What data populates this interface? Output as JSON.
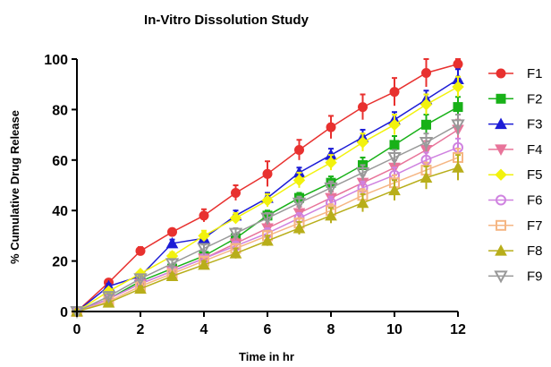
{
  "chart_data": {
    "type": "line",
    "title": "In-Vitro Dissolution Study",
    "xlabel": "Time in hr",
    "ylabel": "% Cumulative Drug Release",
    "xlim": [
      0,
      12
    ],
    "ylim": [
      0,
      100
    ],
    "x_ticks": [
      0,
      2,
      4,
      6,
      8,
      10,
      12
    ],
    "y_ticks": [
      0,
      20,
      40,
      60,
      80,
      100
    ],
    "grid": false,
    "legend_position": "right",
    "x": [
      0,
      1,
      2,
      3,
      4,
      5,
      6,
      7,
      8,
      9,
      10,
      11,
      12
    ],
    "series": [
      {
        "name": "F1",
        "color": "#e8312f",
        "marker": "circle",
        "values": [
          0,
          11.5,
          24,
          31.5,
          38,
          47,
          54.5,
          64,
          73,
          81,
          87,
          94.5,
          98
        ],
        "errors": [
          0,
          1,
          1.5,
          1,
          2.5,
          3,
          5,
          4,
          4.5,
          5,
          5.5,
          5.5,
          2
        ]
      },
      {
        "name": "F2",
        "color": "#18b118",
        "marker": "square",
        "values": [
          0,
          5,
          12,
          17,
          22,
          29,
          38,
          45,
          51,
          58,
          66,
          74,
          81
        ],
        "errors": [
          0,
          1,
          1,
          1,
          1.5,
          1.5,
          2,
          2,
          2.5,
          3,
          3.5,
          4,
          4
        ]
      },
      {
        "name": "F3",
        "color": "#1c1cd6",
        "marker": "triangle-up",
        "values": [
          0,
          10,
          14,
          27,
          29,
          38,
          45,
          55,
          62,
          69,
          76,
          84,
          92
        ],
        "errors": [
          0,
          1,
          1,
          1.5,
          1.5,
          2,
          2,
          2,
          2.5,
          3,
          3,
          3.5,
          4
        ]
      },
      {
        "name": "F4",
        "color": "#e8749a",
        "marker": "triangle-down",
        "values": [
          0,
          5,
          11,
          16,
          21,
          27,
          33,
          39,
          45,
          51,
          57,
          64,
          72
        ],
        "errors": [
          0,
          1,
          1,
          1,
          1.5,
          2,
          2,
          2.5,
          2.5,
          3,
          3,
          3.5,
          4
        ]
      },
      {
        "name": "F5",
        "color": "#f2f20d",
        "marker": "diamond",
        "values": [
          0,
          8,
          15,
          22,
          30,
          37,
          44,
          52,
          59,
          67,
          74,
          82,
          89
        ],
        "errors": [
          0,
          1,
          1,
          1.5,
          2,
          2,
          2.5,
          3,
          3,
          3.5,
          4,
          4,
          4
        ]
      },
      {
        "name": "F6",
        "color": "#cf82e0",
        "marker": "circle-open",
        "values": [
          0,
          5,
          11,
          16,
          21,
          26,
          31,
          37,
          43,
          49,
          54,
          60,
          65
        ],
        "errors": [
          0,
          1,
          1,
          1,
          1.5,
          1.5,
          2,
          2,
          2.5,
          2.5,
          3,
          3,
          3.5
        ]
      },
      {
        "name": "F7",
        "color": "#f5b683",
        "marker": "square-open",
        "values": [
          0,
          4,
          10,
          15,
          20,
          25,
          30,
          35,
          40,
          46,
          51,
          56,
          61
        ],
        "errors": [
          0,
          1,
          1,
          1,
          1.5,
          1.5,
          2,
          2,
          2.5,
          2.5,
          3,
          3,
          3.5
        ]
      },
      {
        "name": "F8",
        "color": "#b8ae1a",
        "marker": "triangle-up",
        "values": [
          0,
          3.5,
          9,
          14,
          18.5,
          23,
          28,
          33,
          38,
          43,
          48,
          53,
          57
        ],
        "errors": [
          0,
          1,
          1,
          1,
          1.5,
          2,
          2,
          2.5,
          3,
          3.5,
          4,
          4.5,
          5
        ]
      },
      {
        "name": "F9",
        "color": "#999999",
        "marker": "triangle-down-open",
        "values": [
          0,
          6,
          13,
          19,
          25,
          31,
          37,
          43,
          49,
          55,
          61,
          67,
          74
        ],
        "errors": [
          0,
          1,
          1,
          1.5,
          1.5,
          2,
          2,
          2.5,
          2.5,
          3,
          3,
          3.5,
          4
        ]
      }
    ]
  }
}
